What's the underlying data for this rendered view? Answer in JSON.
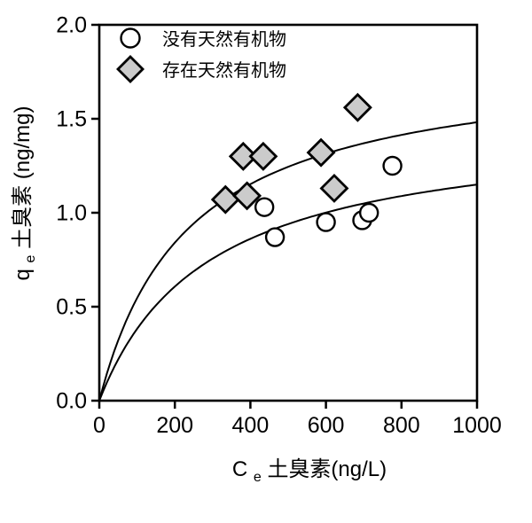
{
  "figure": {
    "background": "#ffffff",
    "ink": "#000000"
  },
  "legend": {
    "position": "top-left",
    "items": [
      {
        "marker": "circle",
        "label": "没有天然有机物"
      },
      {
        "marker": "diamond",
        "label": "存在天然有机物"
      }
    ]
  },
  "chart_data": {
    "type": "scatter",
    "title": "",
    "xlabel": "Ce 土臭素(ng/L)",
    "ylabel": "qe 土臭素 (ng/mg)",
    "xlabel_parts": {
      "base": "C",
      "sub": "e",
      "rest": " 土臭素(ng/L)"
    },
    "ylabel_parts": {
      "base": "q",
      "sub": "e",
      "rest": " 土臭素 (ng/mg)"
    },
    "xlim": [
      0,
      1000
    ],
    "ylim": [
      0,
      2.0
    ],
    "x_ticks": [
      "0",
      "200",
      "400",
      "600",
      "800",
      "1000"
    ],
    "y_ticks": [
      "0.0",
      "0.5",
      "1.0",
      "1.5",
      "2.0"
    ],
    "grid": false,
    "series": [
      {
        "name": "没有天然有机物",
        "marker": "circle",
        "marker_fill": "#ffffff",
        "points": [
          [
            437,
            1.03
          ],
          [
            465,
            0.87
          ],
          [
            600,
            0.95
          ],
          [
            696,
            0.96
          ],
          [
            714,
            1.0
          ],
          [
            776,
            1.25
          ]
        ]
      },
      {
        "name": "存在天然有机物",
        "marker": "diamond",
        "marker_fill": "#cbcbcb",
        "points": [
          [
            334,
            1.07
          ],
          [
            391,
            1.09
          ],
          [
            381,
            1.3
          ],
          [
            434,
            1.3
          ],
          [
            587,
            1.32
          ],
          [
            622,
            1.13
          ],
          [
            684,
            1.56
          ]
        ]
      }
    ],
    "curves": [
      {
        "name": "存在天然有机物",
        "model": "langmuir",
        "qm": 1.83,
        "K": 0.00425
      },
      {
        "name": "没有天然有机物",
        "model": "langmuir",
        "qm": 1.48,
        "K": 0.00348
      }
    ],
    "colors": {
      "line": "#000000",
      "diamond_fill": "#cbcbcb",
      "circle_fill": "#ffffff"
    }
  }
}
